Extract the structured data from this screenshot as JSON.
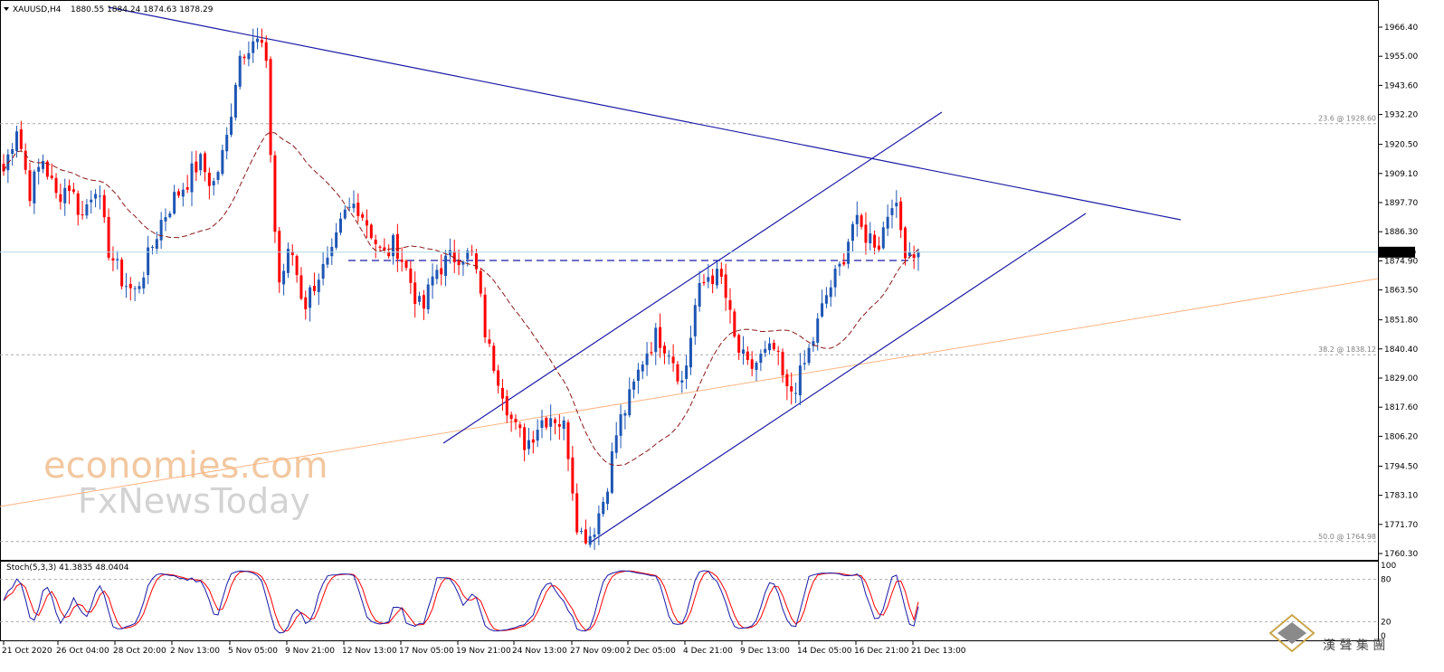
{
  "header": {
    "symbol": "XAUUSD,H4",
    "ohlc": "1880.55 1884.24 1874.63 1878.29"
  },
  "price_axis": {
    "ticks": [
      "1966.40",
      "1955.00",
      "1943.60",
      "1932.20",
      "1920.50",
      "1909.10",
      "1897.70",
      "1886.30",
      "1874.90",
      "1863.50",
      "1851.80",
      "1840.40",
      "1829.00",
      "1817.60",
      "1806.20",
      "1794.50",
      "1783.10",
      "1771.70",
      "1760.30"
    ],
    "current_price": "1878.29"
  },
  "time_axis": {
    "ticks": [
      "21 Oct 2020",
      "26 Oct 04:00",
      "28 Oct 20:00",
      "2 Nov 13:00",
      "5 Nov 05:00",
      "9 Nov 21:00",
      "12 Nov 13:00",
      "17 Nov 05:00",
      "19 Nov 21:00",
      "24 Nov 13:00",
      "27 Nov 09:00",
      "2 Dec 05:00",
      "4 Dec 21:00",
      "9 Dec 13:00",
      "14 Dec 05:00",
      "16 Dec 21:00",
      "21 Dec 13:00"
    ]
  },
  "fib_labels": [
    "23.6 @ 1928.60",
    "38.2 @ 1838.12",
    "50.0 @ 1764.98"
  ],
  "stochastic": {
    "label": "Stoch(5,3,3) 41.3835 48.0404",
    "ticks": [
      "100",
      "80",
      "20",
      "0"
    ]
  },
  "watermark": {
    "line1": "economies.com",
    "line2": "FxNewsToday",
    "logo_text": "漢 聲 集 團"
  },
  "colors": {
    "bull": "#1e56b4",
    "bear": "#ff0000",
    "ma": "#8b1a1a",
    "trendline": "#1a1aa6",
    "fib_line": "#a9a9a9",
    "orange_line": "#ffb482",
    "current_price_line": "#add8e6",
    "stoch_main": "#1a1aa6",
    "stoch_signal": "#ff0000"
  },
  "chart_data": {
    "type": "candlestick",
    "symbol": "XAUUSD",
    "timeframe": "H4",
    "ylim": [
      1760.3,
      1972.0
    ],
    "current_price": 1878.29,
    "fib_levels": [
      {
        "label": "23.6",
        "value": 1928.6
      },
      {
        "label": "38.2",
        "value": 1838.12
      },
      {
        "label": "50.0",
        "value": 1764.98
      }
    ],
    "anchors": [
      1910,
      1928,
      1902,
      1915,
      1900,
      1905,
      1892,
      1906,
      1880,
      1868,
      1862,
      1875,
      1890,
      1899,
      1906,
      1914,
      1904,
      1920,
      1955,
      1962,
      1958,
      1865,
      1880,
      1857,
      1869,
      1874,
      1892,
      1898,
      1888,
      1876,
      1882,
      1869,
      1854,
      1871,
      1875,
      1878,
      1876,
      1842,
      1828,
      1810,
      1803,
      1812,
      1815,
      1809,
      1768,
      1768,
      1783,
      1810,
      1822,
      1838,
      1846,
      1840,
      1826,
      1860,
      1870,
      1867,
      1842,
      1832,
      1837,
      1840,
      1822,
      1830,
      1845,
      1862,
      1872,
      1890,
      1885,
      1882,
      1900,
      1880,
      1878.29
    ],
    "stochastic": {
      "k": 41.3835,
      "d": 48.0404,
      "levels": [
        80,
        20
      ],
      "ylim": [
        0,
        100
      ]
    }
  }
}
